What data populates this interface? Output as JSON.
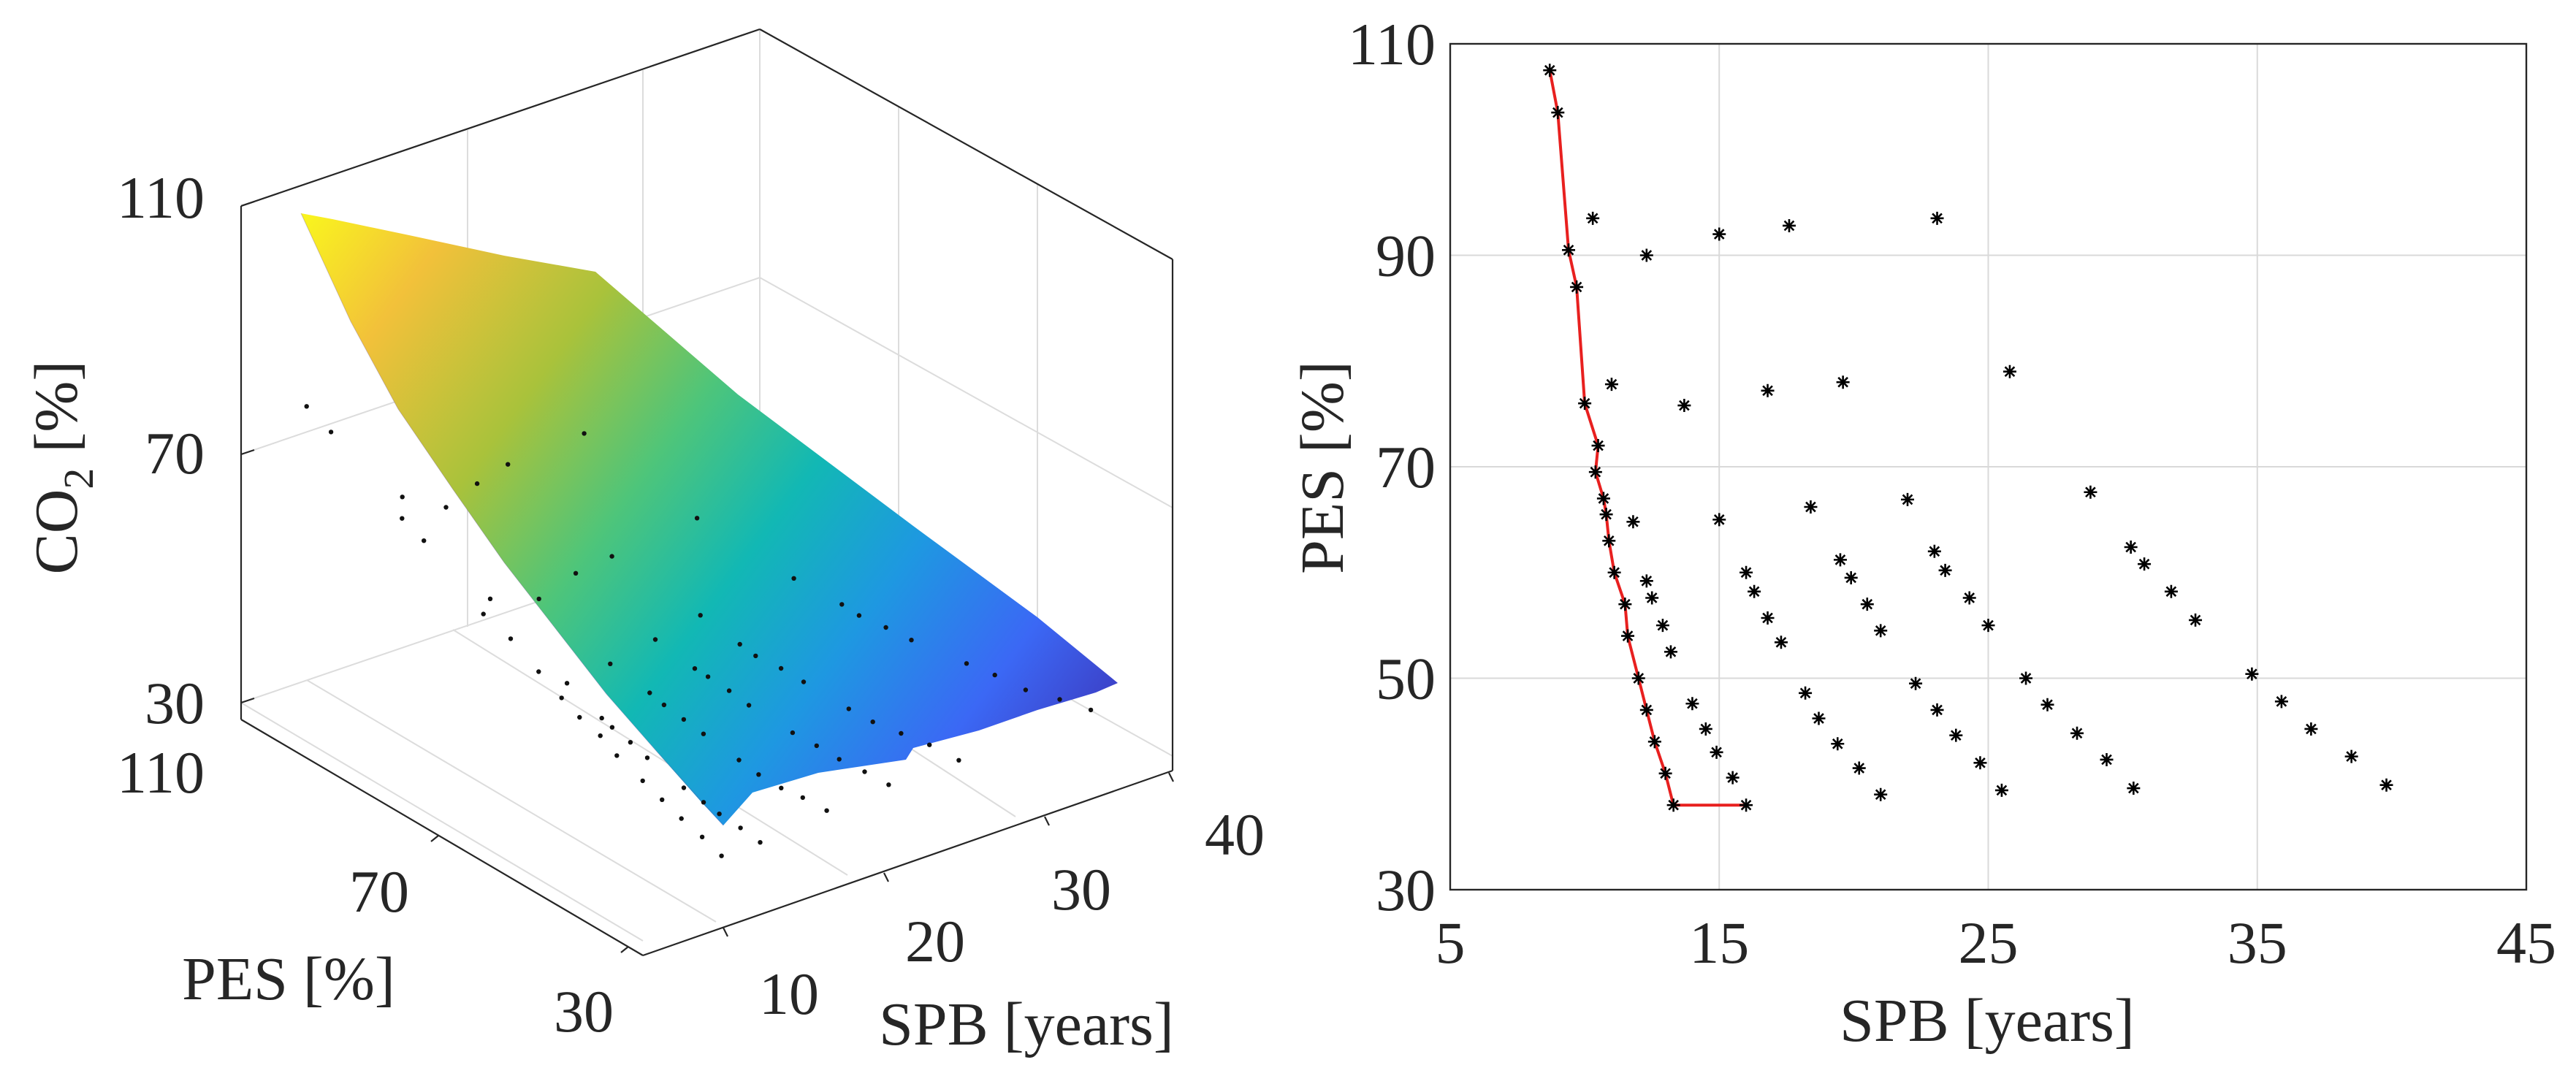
{
  "chart_data": [
    {
      "type": "surface3d",
      "xlabel": "SPB [years]",
      "ylabel": "PES [%]",
      "zlabel_main": "CO",
      "zlabel_sub": "2",
      "zlabel_unit": " [%]",
      "xticks": [
        10,
        20,
        30,
        40
      ],
      "yticks": [
        30,
        70,
        110
      ],
      "zticks": [
        30,
        70,
        110
      ],
      "xlim": [
        5,
        42
      ],
      "ylim": [
        30,
        110
      ],
      "zlim": [
        30,
        110
      ],
      "colormap": [
        "#3e26a8",
        "#3d67f5",
        "#1f9ae0",
        "#12b8b6",
        "#4dc57e",
        "#a6c13a",
        "#f0b63a",
        "#f9e21e"
      ],
      "points": [
        {
          "x": 8.7,
          "y": 107.5,
          "z": 107.5
        },
        {
          "x": 9.0,
          "y": 103.5,
          "z": 103.5
        },
        {
          "x": 9.4,
          "y": 90.5,
          "z": 90.5
        },
        {
          "x": 9.7,
          "y": 87.0,
          "z": 87.0
        },
        {
          "x": 10.0,
          "y": 76.0,
          "z": 76.0
        },
        {
          "x": 10.5,
          "y": 72.0,
          "z": 72.0
        },
        {
          "x": 10.7,
          "y": 67.0,
          "z": 67.0
        },
        {
          "x": 10.9,
          "y": 63.0,
          "z": 63.0
        },
        {
          "x": 11.1,
          "y": 60.0,
          "z": 60.0
        },
        {
          "x": 11.5,
          "y": 57.0,
          "z": 57.0
        },
        {
          "x": 11.6,
          "y": 54.0,
          "z": 54.0
        },
        {
          "x": 12.0,
          "y": 50.0,
          "z": 50.0
        },
        {
          "x": 12.3,
          "y": 47.0,
          "z": 47.0
        },
        {
          "x": 12.6,
          "y": 44.0,
          "z": 44.0
        },
        {
          "x": 13.0,
          "y": 41.0,
          "z": 41.0
        },
        {
          "x": 13.3,
          "y": 38.0,
          "z": 38.0
        },
        {
          "x": 16.0,
          "y": 38.0,
          "z": 38.0
        },
        {
          "x": 10.3,
          "y": 93.0,
          "z": 93.0
        },
        {
          "x": 12.3,
          "y": 90.0,
          "z": 90.0
        },
        {
          "x": 15.0,
          "y": 91.5,
          "z": 91.5
        },
        {
          "x": 17.5,
          "y": 92.5,
          "z": 92.5
        },
        {
          "x": 23.0,
          "y": 93.0,
          "z": 93.0
        },
        {
          "x": 11.0,
          "y": 77.5,
          "z": 77.5
        },
        {
          "x": 13.7,
          "y": 75.5,
          "z": 75.5
        },
        {
          "x": 16.8,
          "y": 77.0,
          "z": 77.0
        },
        {
          "x": 19.5,
          "y": 77.5,
          "z": 77.5
        },
        {
          "x": 25.8,
          "y": 78.5,
          "z": 78.5
        },
        {
          "x": 11.8,
          "y": 64.5,
          "z": 64.5
        },
        {
          "x": 15.0,
          "y": 65.0,
          "z": 65.0
        },
        {
          "x": 18.5,
          "y": 66.0,
          "z": 66.0
        },
        {
          "x": 22.0,
          "y": 67.0,
          "z": 67.0
        },
        {
          "x": 28.7,
          "y": 67.5,
          "z": 67.5
        },
        {
          "x": 12.3,
          "y": 59.0,
          "z": 59.0
        },
        {
          "x": 12.5,
          "y": 57.5,
          "z": 57.5
        },
        {
          "x": 12.9,
          "y": 55.0,
          "z": 55.0
        },
        {
          "x": 13.2,
          "y": 52.5,
          "z": 52.5
        },
        {
          "x": 16.0,
          "y": 60.0,
          "z": 60.0
        },
        {
          "x": 16.3,
          "y": 58.0,
          "z": 58.0
        },
        {
          "x": 16.8,
          "y": 55.5,
          "z": 55.5
        },
        {
          "x": 17.3,
          "y": 53.0,
          "z": 53.0
        },
        {
          "x": 19.5,
          "y": 61.0,
          "z": 61.0
        },
        {
          "x": 19.9,
          "y": 59.5,
          "z": 59.5
        },
        {
          "x": 20.5,
          "y": 57.0,
          "z": 57.0
        },
        {
          "x": 21.0,
          "y": 54.5,
          "z": 54.5
        },
        {
          "x": 23.0,
          "y": 62.0,
          "z": 62.0
        },
        {
          "x": 23.4,
          "y": 60.0,
          "z": 60.0
        },
        {
          "x": 24.3,
          "y": 57.5,
          "z": 57.5
        },
        {
          "x": 25.0,
          "y": 55.0,
          "z": 55.0
        },
        {
          "x": 30.3,
          "y": 62.5,
          "z": 62.5
        },
        {
          "x": 30.8,
          "y": 60.5,
          "z": 60.5
        },
        {
          "x": 31.8,
          "y": 58.0,
          "z": 58.0
        },
        {
          "x": 32.7,
          "y": 55.5,
          "z": 55.5
        },
        {
          "x": 14.0,
          "y": 47.5,
          "z": 47.5
        },
        {
          "x": 14.5,
          "y": 45.0,
          "z": 45.0
        },
        {
          "x": 14.9,
          "y": 43.0,
          "z": 43.0
        },
        {
          "x": 15.5,
          "y": 40.5,
          "z": 40.5
        },
        {
          "x": 18.2,
          "y": 48.5,
          "z": 48.5
        },
        {
          "x": 18.7,
          "y": 46.0,
          "z": 46.0
        },
        {
          "x": 19.4,
          "y": 43.5,
          "z": 43.5
        },
        {
          "x": 20.2,
          "y": 41.5,
          "z": 41.5
        },
        {
          "x": 21.0,
          "y": 39.0,
          "z": 39.0
        },
        {
          "x": 22.3,
          "y": 49.5,
          "z": 49.5
        },
        {
          "x": 23.1,
          "y": 47.0,
          "z": 47.0
        },
        {
          "x": 23.8,
          "y": 44.5,
          "z": 44.5
        },
        {
          "x": 24.7,
          "y": 42.0,
          "z": 42.0
        },
        {
          "x": 25.5,
          "y": 39.5,
          "z": 39.5
        },
        {
          "x": 26.4,
          "y": 50.0,
          "z": 50.0
        },
        {
          "x": 27.2,
          "y": 47.5,
          "z": 47.5
        },
        {
          "x": 28.3,
          "y": 45.0,
          "z": 45.0
        },
        {
          "x": 29.4,
          "y": 42.5,
          "z": 42.5
        },
        {
          "x": 30.4,
          "y": 39.5,
          "z": 39.5
        },
        {
          "x": 34.8,
          "y": 50.5,
          "z": 50.5
        },
        {
          "x": 35.9,
          "y": 48.0,
          "z": 48.0
        },
        {
          "x": 37.0,
          "y": 45.0,
          "z": 45.0
        },
        {
          "x": 38.5,
          "y": 42.5,
          "z": 42.5
        },
        {
          "x": 39.8,
          "y": 40.0,
          "z": 40.0
        }
      ]
    },
    {
      "type": "scatter",
      "xlabel": "SPB [years]",
      "ylabel": "PES [%]",
      "xlim": [
        5,
        45
      ],
      "ylim": [
        30,
        110
      ],
      "xticks": [
        5,
        15,
        25,
        35,
        45
      ],
      "yticks": [
        30,
        50,
        70,
        90,
        110
      ],
      "grid": true,
      "marker": "*",
      "marker_color": "#000000",
      "front_line_color": "#e8201f",
      "points": [
        {
          "x": 8.7,
          "y": 107.5
        },
        {
          "x": 9.0,
          "y": 103.5
        },
        {
          "x": 9.4,
          "y": 90.5
        },
        {
          "x": 9.7,
          "y": 87.0
        },
        {
          "x": 10.0,
          "y": 76.0
        },
        {
          "x": 10.5,
          "y": 72.0
        },
        {
          "x": 10.4,
          "y": 69.5
        },
        {
          "x": 10.7,
          "y": 67.0
        },
        {
          "x": 10.8,
          "y": 65.5
        },
        {
          "x": 10.9,
          "y": 63.0
        },
        {
          "x": 11.1,
          "y": 60.0
        },
        {
          "x": 11.5,
          "y": 57.0
        },
        {
          "x": 11.6,
          "y": 54.0
        },
        {
          "x": 12.0,
          "y": 50.0
        },
        {
          "x": 12.3,
          "y": 47.0
        },
        {
          "x": 12.6,
          "y": 44.0
        },
        {
          "x": 13.0,
          "y": 41.0
        },
        {
          "x": 13.3,
          "y": 38.0
        },
        {
          "x": 16.0,
          "y": 38.0
        },
        {
          "x": 10.3,
          "y": 93.5
        },
        {
          "x": 12.3,
          "y": 90.0
        },
        {
          "x": 15.0,
          "y": 92.0
        },
        {
          "x": 17.6,
          "y": 92.8
        },
        {
          "x": 23.1,
          "y": 93.5
        },
        {
          "x": 11.0,
          "y": 77.8
        },
        {
          "x": 13.7,
          "y": 75.8
        },
        {
          "x": 16.8,
          "y": 77.2
        },
        {
          "x": 19.6,
          "y": 78.0
        },
        {
          "x": 25.8,
          "y": 79.0
        },
        {
          "x": 11.8,
          "y": 64.8
        },
        {
          "x": 15.0,
          "y": 65.0
        },
        {
          "x": 18.4,
          "y": 66.2
        },
        {
          "x": 22.0,
          "y": 66.9
        },
        {
          "x": 28.8,
          "y": 67.6
        },
        {
          "x": 12.3,
          "y": 59.2
        },
        {
          "x": 12.5,
          "y": 57.6
        },
        {
          "x": 12.9,
          "y": 55.0
        },
        {
          "x": 13.2,
          "y": 52.5
        },
        {
          "x": 16.0,
          "y": 60.0
        },
        {
          "x": 16.3,
          "y": 58.2
        },
        {
          "x": 16.8,
          "y": 55.7
        },
        {
          "x": 17.3,
          "y": 53.4
        },
        {
          "x": 19.5,
          "y": 61.2
        },
        {
          "x": 19.9,
          "y": 59.5
        },
        {
          "x": 20.5,
          "y": 57.0
        },
        {
          "x": 21.0,
          "y": 54.5
        },
        {
          "x": 23.0,
          "y": 62.0
        },
        {
          "x": 23.4,
          "y": 60.2
        },
        {
          "x": 24.3,
          "y": 57.6
        },
        {
          "x": 25.0,
          "y": 55.0
        },
        {
          "x": 30.3,
          "y": 62.4
        },
        {
          "x": 30.8,
          "y": 60.8
        },
        {
          "x": 31.8,
          "y": 58.2
        },
        {
          "x": 32.7,
          "y": 55.5
        },
        {
          "x": 14.0,
          "y": 47.6
        },
        {
          "x": 14.5,
          "y": 45.2
        },
        {
          "x": 14.9,
          "y": 43.0
        },
        {
          "x": 15.5,
          "y": 40.6
        },
        {
          "x": 18.2,
          "y": 48.6
        },
        {
          "x": 18.7,
          "y": 46.2
        },
        {
          "x": 19.4,
          "y": 43.8
        },
        {
          "x": 20.2,
          "y": 41.5
        },
        {
          "x": 21.0,
          "y": 39.0
        },
        {
          "x": 22.3,
          "y": 49.5
        },
        {
          "x": 23.1,
          "y": 47.0
        },
        {
          "x": 23.8,
          "y": 44.6
        },
        {
          "x": 24.7,
          "y": 42.0
        },
        {
          "x": 25.5,
          "y": 39.4
        },
        {
          "x": 26.4,
          "y": 50.0
        },
        {
          "x": 27.2,
          "y": 47.5
        },
        {
          "x": 28.3,
          "y": 44.8
        },
        {
          "x": 29.4,
          "y": 42.3
        },
        {
          "x": 30.4,
          "y": 39.6
        },
        {
          "x": 34.8,
          "y": 50.4
        },
        {
          "x": 35.9,
          "y": 47.8
        },
        {
          "x": 37.0,
          "y": 45.2
        },
        {
          "x": 38.5,
          "y": 42.6
        },
        {
          "x": 39.8,
          "y": 39.9
        }
      ],
      "pareto_front": [
        {
          "x": 8.7,
          "y": 107.5
        },
        {
          "x": 9.0,
          "y": 103.5
        },
        {
          "x": 9.4,
          "y": 90.5
        },
        {
          "x": 9.7,
          "y": 87.0
        },
        {
          "x": 10.0,
          "y": 76.0
        },
        {
          "x": 10.5,
          "y": 72.0
        },
        {
          "x": 10.4,
          "y": 69.5
        },
        {
          "x": 10.7,
          "y": 67.0
        },
        {
          "x": 10.8,
          "y": 65.5
        },
        {
          "x": 10.9,
          "y": 63.0
        },
        {
          "x": 11.1,
          "y": 60.0
        },
        {
          "x": 11.5,
          "y": 57.0
        },
        {
          "x": 11.6,
          "y": 54.0
        },
        {
          "x": 12.0,
          "y": 50.0
        },
        {
          "x": 12.3,
          "y": 47.0
        },
        {
          "x": 12.6,
          "y": 44.0
        },
        {
          "x": 13.0,
          "y": 41.0
        },
        {
          "x": 13.3,
          "y": 38.0
        },
        {
          "x": 16.0,
          "y": 38.0
        }
      ]
    }
  ]
}
